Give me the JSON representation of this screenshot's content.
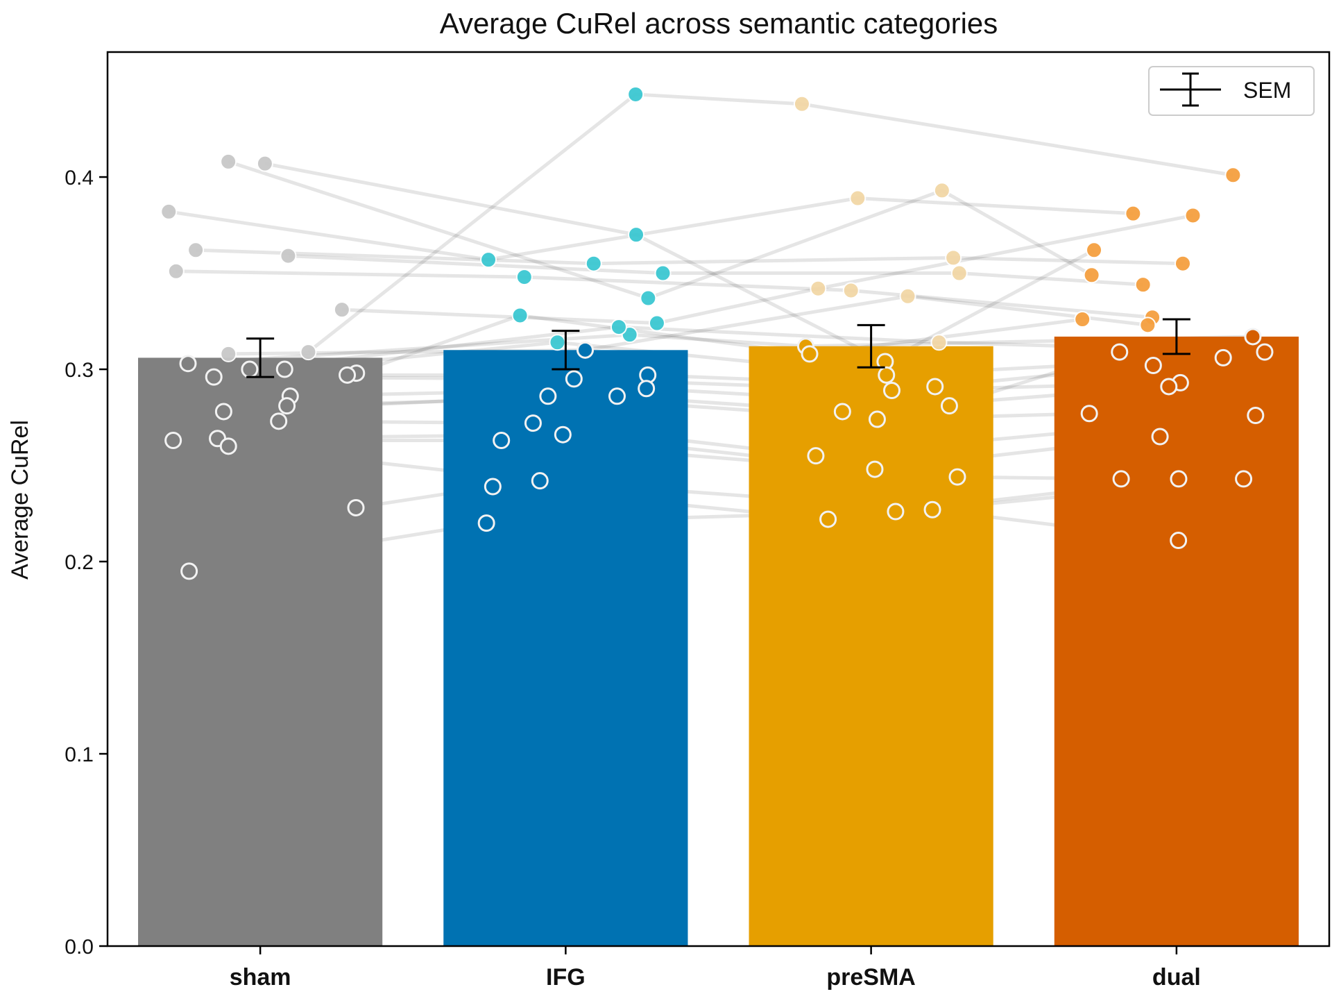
{
  "chart_data": {
    "type": "bar",
    "title": "Average CuRel across semantic categories",
    "xlabel": "",
    "ylabel": "Average CuRel",
    "categories": [
      "sham",
      "IFG",
      "preSMA",
      "dual"
    ],
    "values": [
      0.306,
      0.31,
      0.312,
      0.317
    ],
    "sem": [
      0.01,
      0.01,
      0.011,
      0.009
    ],
    "colors": [
      "#808080",
      "#0072B2",
      "#E69F00",
      "#D55E00"
    ],
    "point_colors": [
      "#c8c8c8",
      "#3cc8d2",
      "#f2d7a6",
      "#f5a040"
    ],
    "ylim": [
      0,
      0.465
    ],
    "yticks": [
      0.0,
      0.1,
      0.2,
      0.3,
      0.4
    ],
    "ytick_labels": [
      "0.0",
      "0.1",
      "0.2",
      "0.3",
      "0.4"
    ],
    "legend": {
      "label": "SEM",
      "position": "top-right"
    },
    "grid": false,
    "subjects": [
      {
        "values": [
          0.309,
          0.443,
          0.438,
          0.401
        ]
      },
      {
        "values": [
          0.407,
          0.37,
          0.304,
          0.362
        ]
      },
      {
        "values": [
          0.408,
          0.337,
          0.393,
          0.349
        ]
      },
      {
        "values": [
          0.382,
          0.357,
          0.389,
          0.381
        ]
      },
      {
        "values": [
          0.362,
          0.355,
          0.358,
          0.355
        ]
      },
      {
        "values": [
          0.359,
          0.35,
          0.35,
          0.344
        ]
      },
      {
        "values": [
          0.351,
          0.348,
          0.341,
          0.327
        ]
      },
      {
        "values": [
          0.331,
          0.324,
          0.342,
          0.38
        ]
      },
      {
        "values": [
          0.308,
          0.31,
          0.338,
          0.323
        ]
      },
      {
        "values": [
          0.303,
          0.318,
          0.312,
          0.317
        ]
      },
      {
        "values": [
          0.3,
          0.322,
          0.314,
          0.309
        ]
      },
      {
        "values": [
          0.298,
          0.328,
          0.308,
          0.326
        ]
      },
      {
        "values": [
          0.3,
          0.314,
          0.297,
          0.306
        ]
      },
      {
        "values": [
          0.297,
          0.297,
          0.291,
          0.302
        ]
      },
      {
        "values": [
          0.296,
          0.295,
          0.289,
          0.293
        ]
      },
      {
        "values": [
          0.286,
          0.29,
          0.281,
          0.309
        ]
      },
      {
        "values": [
          0.281,
          0.286,
          0.278,
          0.291
        ]
      },
      {
        "values": [
          0.278,
          0.286,
          0.274,
          0.277
        ]
      },
      {
        "values": [
          0.273,
          0.272,
          0.255,
          0.276
        ]
      },
      {
        "values": [
          0.264,
          0.266,
          0.248,
          0.265
        ]
      },
      {
        "values": [
          0.263,
          0.263,
          0.244,
          0.243
        ]
      },
      {
        "values": [
          0.26,
          0.242,
          0.227,
          0.211
        ]
      },
      {
        "values": [
          0.228,
          0.239,
          0.222,
          0.243
        ]
      },
      {
        "values": [
          0.195,
          0.22,
          0.226,
          0.243
        ]
      }
    ]
  }
}
